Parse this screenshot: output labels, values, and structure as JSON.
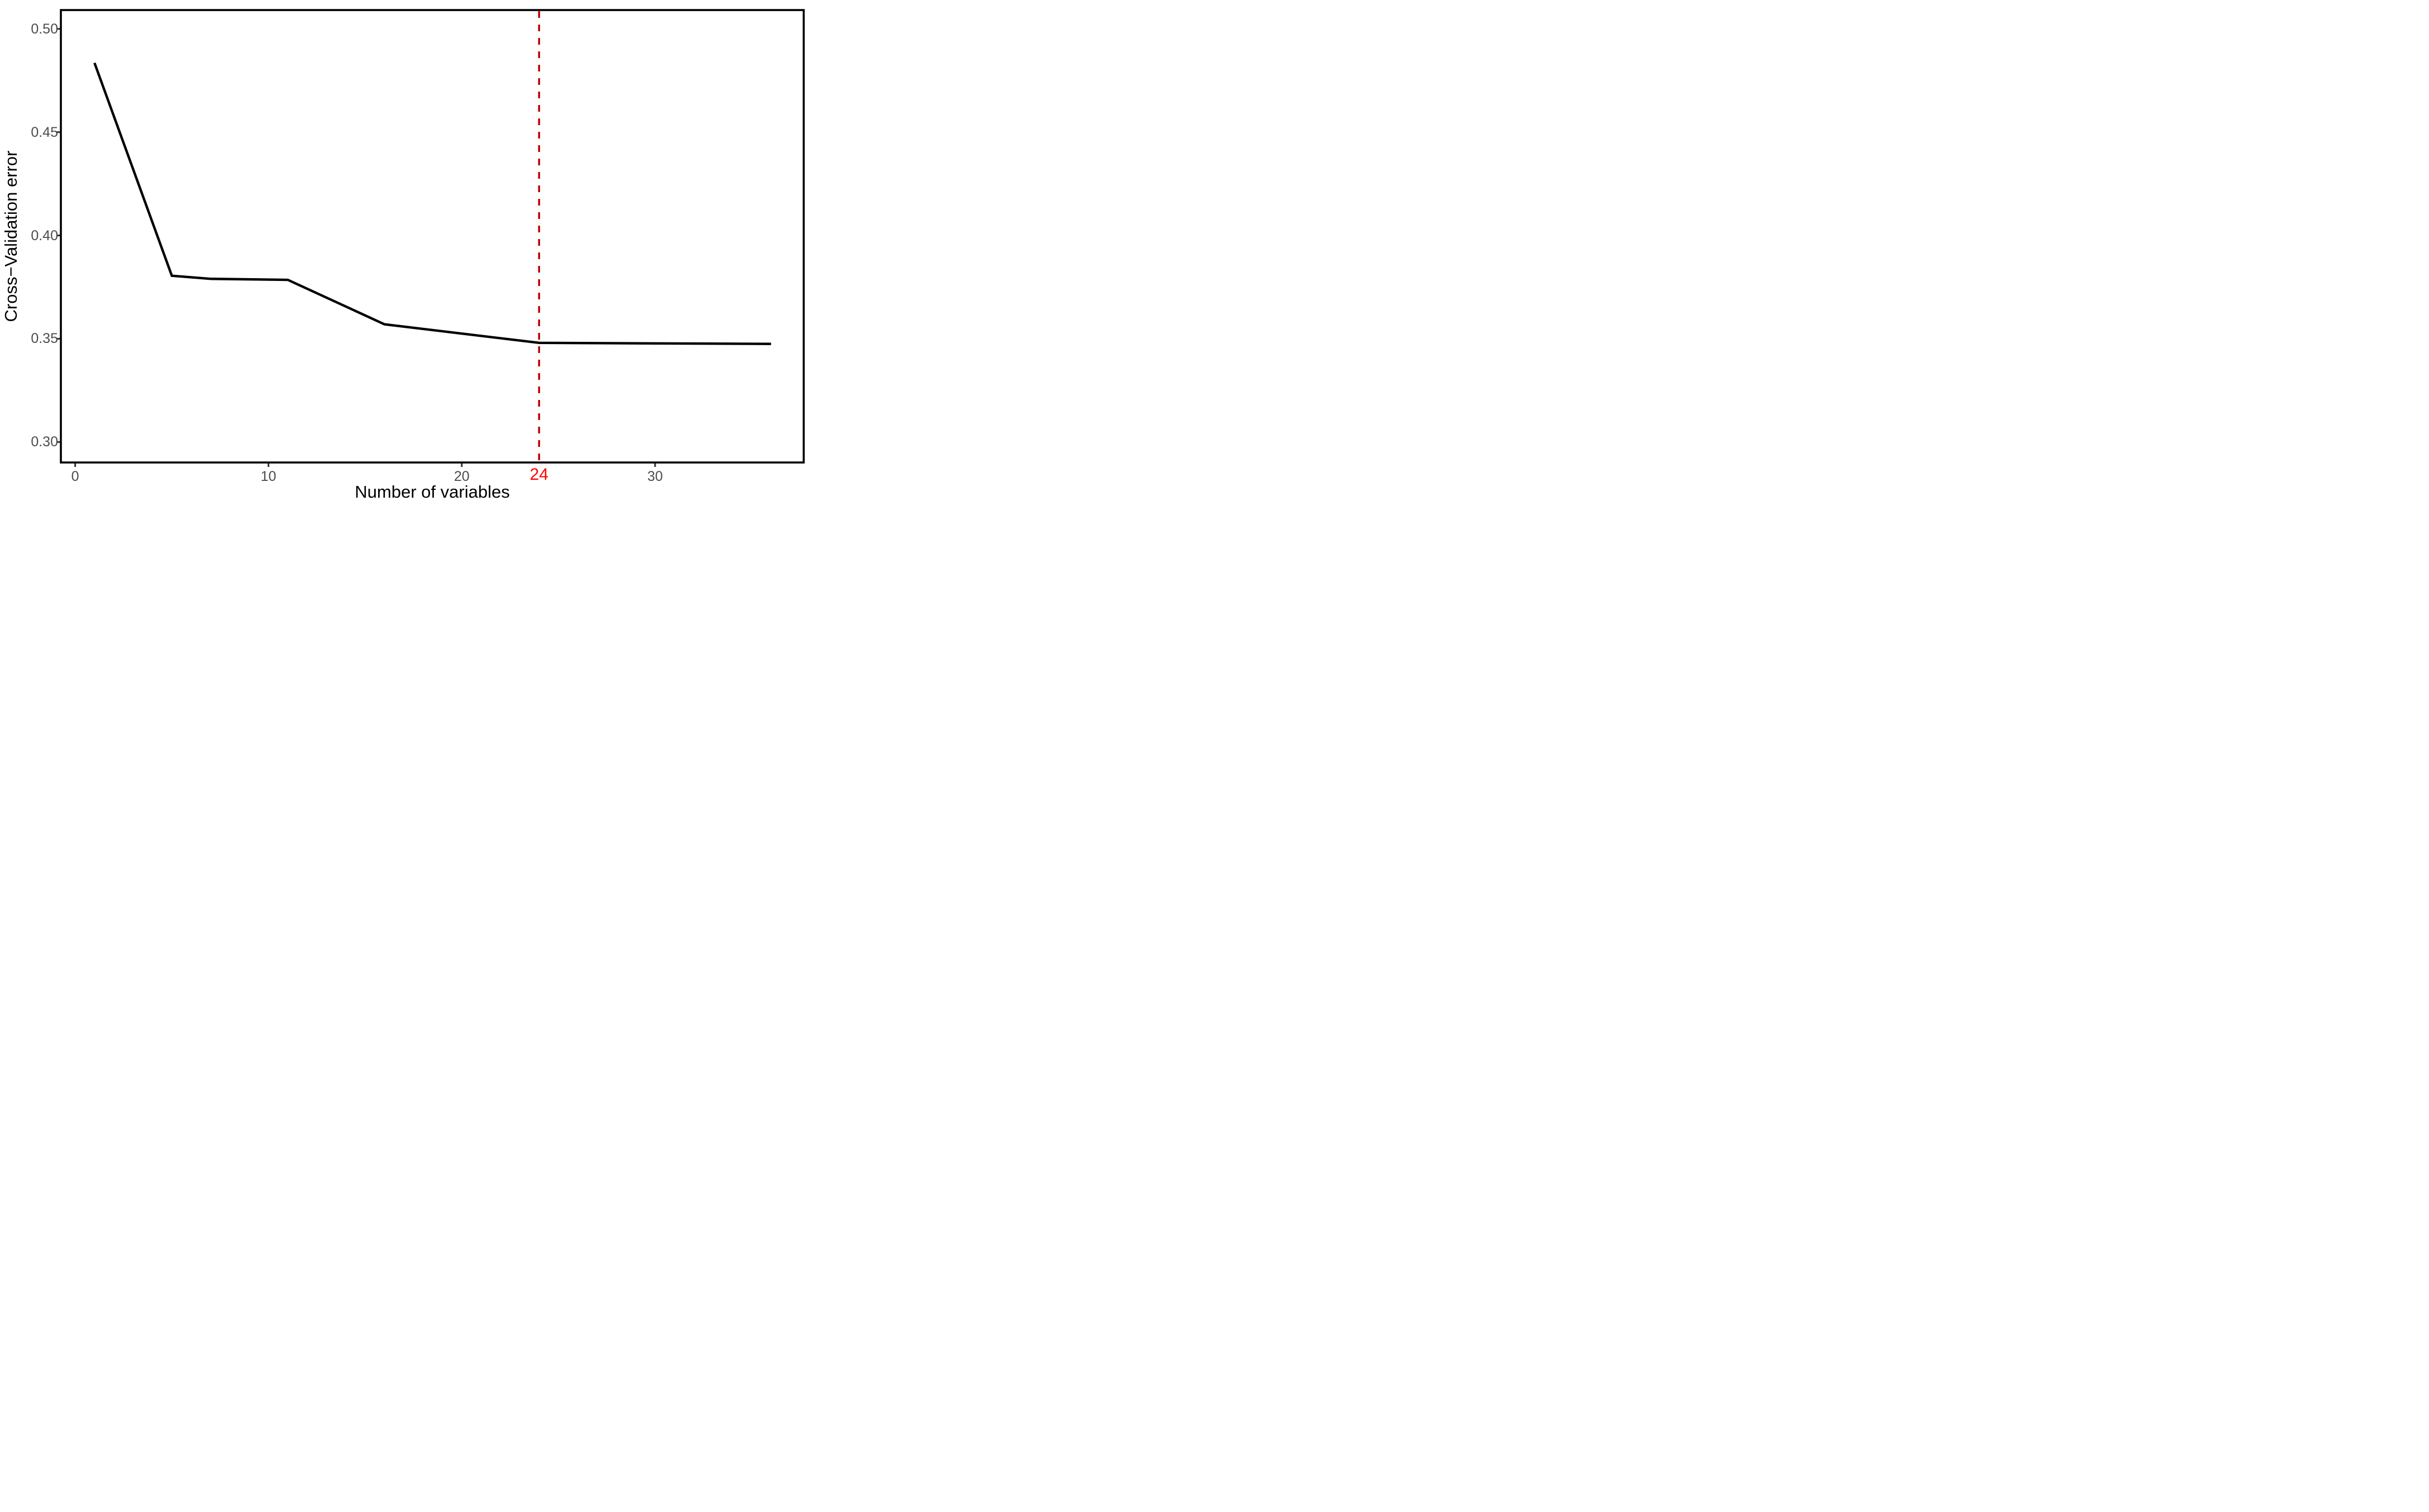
{
  "figure": {
    "background": "#FFFFFF",
    "title": ""
  },
  "chart_data": {
    "type": "line",
    "title": "",
    "xlabel": "Number of variables",
    "ylabel": "Cross−Validation error",
    "series": [
      {
        "name": "cross-validation-error",
        "x": [
          1,
          5,
          7,
          11,
          16,
          24,
          36
        ],
        "y": [
          0.4835,
          0.3805,
          0.379,
          0.3785,
          0.357,
          0.348,
          0.3475
        ]
      }
    ],
    "xlim": [
      -0.74,
      37.69
    ],
    "ylim": [
      0.2901,
      0.5091
    ],
    "x_ticks": [
      {
        "value": 0,
        "label": "0"
      },
      {
        "value": 10,
        "label": "10"
      },
      {
        "value": 20,
        "label": "20"
      },
      {
        "value": 30,
        "label": "30"
      }
    ],
    "y_ticks": [
      {
        "value": 0.3,
        "label": "0.30"
      },
      {
        "value": 0.35,
        "label": "0.35"
      },
      {
        "value": 0.4,
        "label": "0.40"
      },
      {
        "value": 0.45,
        "label": "0.45"
      },
      {
        "value": 0.5,
        "label": "0.50"
      }
    ],
    "vline": {
      "x": 24,
      "label": "24",
      "style": "dashed"
    },
    "grid": false,
    "legend": false,
    "colors": {
      "line": "#000000",
      "vline": "#C00000",
      "vline_label": "#FF0000",
      "tick_labels": "#4D4D4D",
      "tick_marks": "#333333",
      "panel_border": "#000000",
      "axis_titles": "#000000",
      "background": "#FFFFFF"
    }
  }
}
